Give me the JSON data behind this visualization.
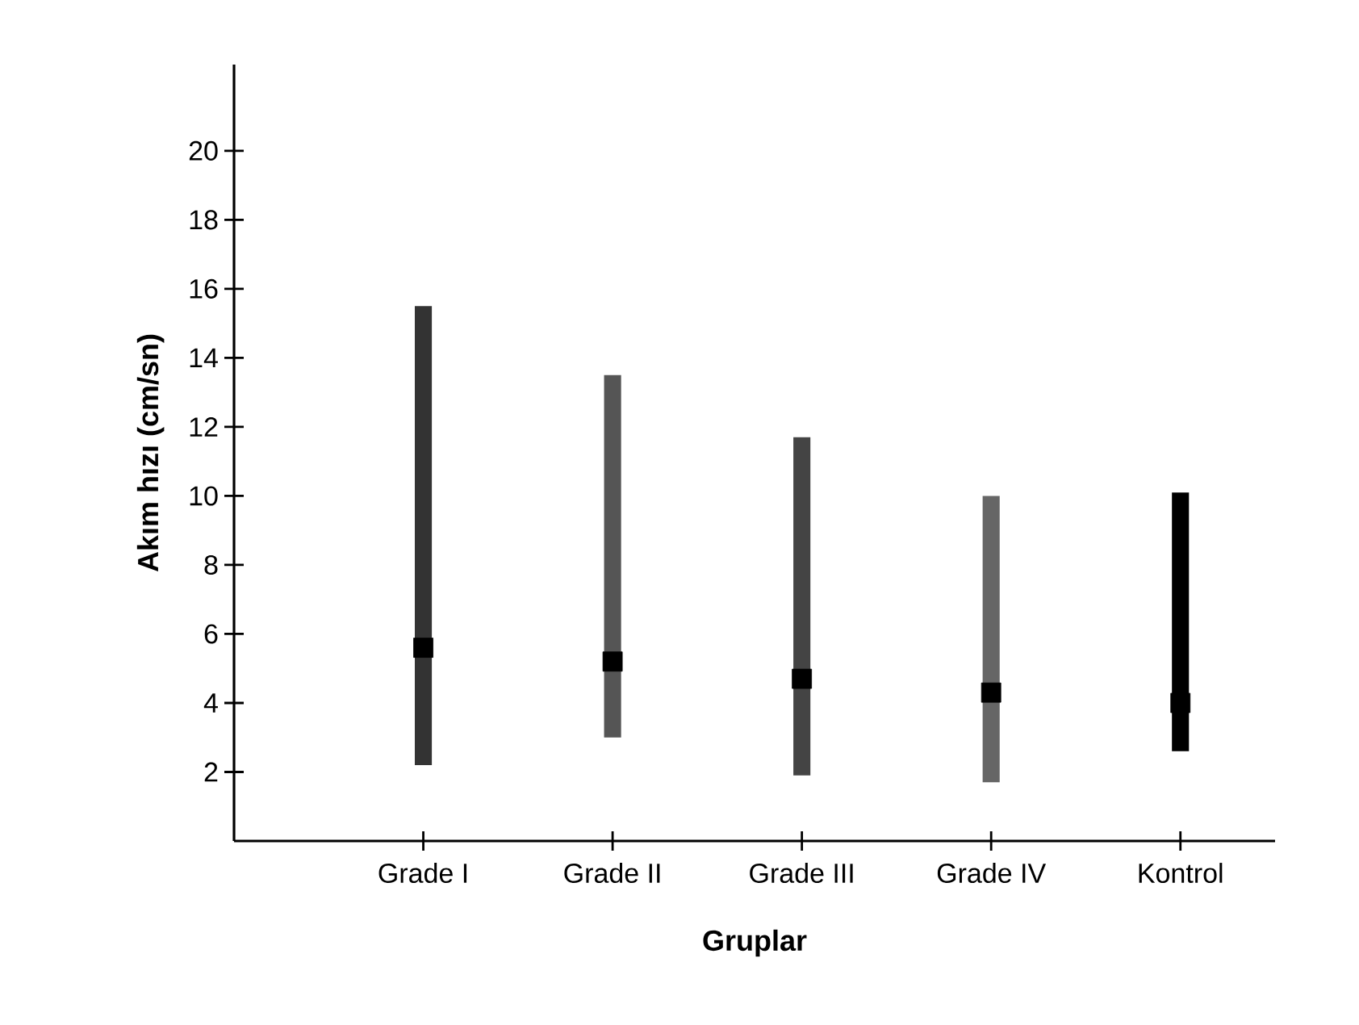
{
  "chart_data": {
    "type": "bar",
    "xlabel": "Gruplar",
    "ylabel": "Akım hızı (cm/sn)",
    "categories": [
      "Grade I",
      "Grade II",
      "Grade III",
      "Grade IV",
      "Kontrol"
    ],
    "series": [
      {
        "colors": [
          "#333333",
          "#555555",
          "#444444",
          "#666666",
          "#000000"
        ],
        "base": [
          2.2,
          3.0,
          1.9,
          1.7,
          2.6
        ],
        "values": [
          13.3,
          10.5,
          9.8,
          8.3,
          7.5
        ]
      },
      {
        "type": "scatter",
        "marker": "square",
        "color": "#000000",
        "x": [
          "Grade I",
          "Grade II",
          "Grade III",
          "Grade IV",
          "Kontrol"
        ],
        "values": [
          5.6,
          5.2,
          4.7,
          4.3,
          4.0
        ]
      }
    ],
    "ylim": [
      0,
      22.5
    ],
    "yticks": [
      2,
      4,
      6,
      8,
      10,
      12,
      14,
      16,
      18,
      20
    ],
    "grid": false
  }
}
